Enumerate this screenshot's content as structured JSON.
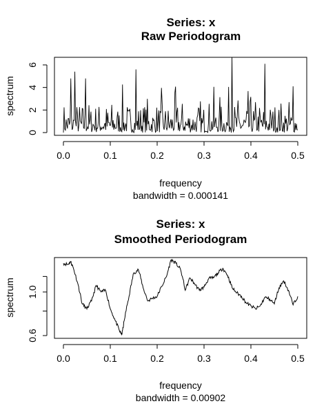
{
  "chart_data": [
    {
      "type": "line",
      "title": "Series: x",
      "subtitle": "Raw Periodogram",
      "xlabel": "frequency",
      "ylabel": "spectrum",
      "note": "bandwidth = 0.000141",
      "xlim": [
        0.0,
        0.5
      ],
      "ylim": [
        0,
        6.5
      ],
      "xticks": [
        "0.0",
        "0.1",
        "0.2",
        "0.3",
        "0.4",
        "0.5"
      ],
      "yticks": [
        "0",
        "2",
        "4",
        "6"
      ],
      "grid": false,
      "x_range": [
        0.0,
        0.5
      ],
      "n_points": 350,
      "peaks": [
        {
          "x": 0.016,
          "y": 4.8
        },
        {
          "x": 0.024,
          "y": 5.4
        },
        {
          "x": 0.047,
          "y": 4.8
        },
        {
          "x": 0.155,
          "y": 5.6
        },
        {
          "x": 0.359,
          "y": 6.7
        },
        {
          "x": 0.43,
          "y": 6.1
        },
        {
          "x": 0.49,
          "y": 4.1
        }
      ]
    },
    {
      "type": "line",
      "title": "Series: x",
      "subtitle": "Smoothed Periodogram",
      "xlabel": "frequency",
      "ylabel": "spectrum",
      "note": "bandwidth = 0.00902",
      "xlim": [
        0.0,
        0.5
      ],
      "ylim": [
        0.6,
        1.45
      ],
      "y_scale": "log",
      "xticks": [
        "0.0",
        "0.1",
        "0.2",
        "0.3",
        "0.4",
        "0.5"
      ],
      "yticks": [
        "0.6",
        "1.0"
      ],
      "grid": false,
      "x": [
        0.0,
        0.01,
        0.015,
        0.02,
        0.03,
        0.04,
        0.05,
        0.06,
        0.07,
        0.08,
        0.09,
        0.1,
        0.11,
        0.12,
        0.125,
        0.13,
        0.14,
        0.15,
        0.16,
        0.17,
        0.18,
        0.19,
        0.2,
        0.21,
        0.22,
        0.23,
        0.24,
        0.25,
        0.26,
        0.27,
        0.28,
        0.29,
        0.3,
        0.31,
        0.32,
        0.33,
        0.34,
        0.35,
        0.36,
        0.37,
        0.38,
        0.39,
        0.4,
        0.41,
        0.42,
        0.43,
        0.44,
        0.45,
        0.46,
        0.47,
        0.48,
        0.49,
        0.5
      ],
      "y": [
        1.4,
        1.38,
        1.43,
        1.35,
        1.12,
        0.87,
        0.82,
        0.9,
        1.08,
        1.0,
        1.02,
        0.82,
        0.72,
        0.63,
        0.61,
        0.72,
        0.95,
        1.25,
        1.3,
        1.05,
        0.9,
        0.93,
        0.95,
        1.07,
        1.2,
        1.46,
        1.4,
        1.3,
        1.02,
        1.18,
        1.1,
        1.02,
        1.06,
        1.17,
        1.18,
        1.25,
        1.32,
        1.22,
        1.05,
        0.99,
        0.95,
        0.88,
        0.85,
        0.82,
        0.85,
        0.94,
        0.92,
        0.87,
        1.05,
        1.14,
        1.02,
        0.86,
        0.95
      ]
    }
  ]
}
